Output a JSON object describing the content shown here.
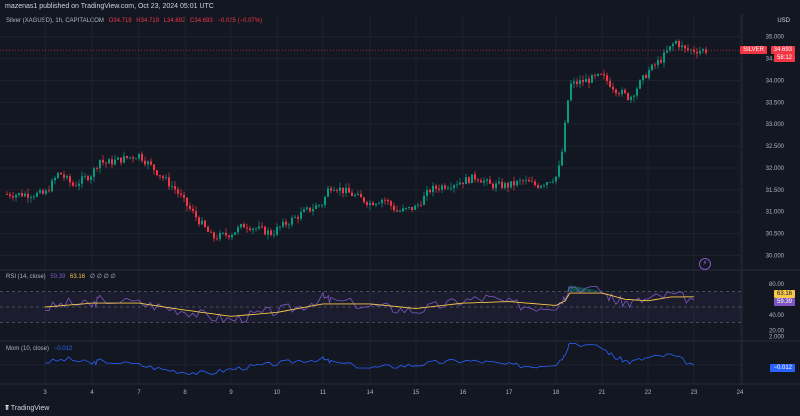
{
  "header": {
    "published": "mazenas1 published on TradingView.com, Oct 23, 2024 05:01 UTC"
  },
  "main_pane": {
    "symbol": "Silver (XAGUSD), 1h, CAPITALCOM",
    "open": "O34.719",
    "high": "H34.719",
    "low": "L34.692",
    "close": "C34.693",
    "change": "−0.025 (−0.07%)",
    "currency": "USD",
    "last_label": "SILVER",
    "last_price": "34.693",
    "countdown": "58:12"
  },
  "rsi_pane": {
    "title": "RSI (14, close)",
    "rsi_value": "59.39",
    "ma_value": "63.16",
    "extra": "∅ ∅ ∅ ∅"
  },
  "mom_pane": {
    "title": "Mom (10, close)",
    "value": "−0.012"
  },
  "footer": {
    "brand": "TradingView"
  },
  "colors": {
    "up": "#089981",
    "down": "#f23645",
    "rsi": "#7e57c2",
    "rsi_ma": "#f7c948",
    "mom": "#2962ff",
    "bg": "#131722"
  },
  "chart_data": {
    "type": "candlestick",
    "interval": "1h",
    "x_ticks": [
      "3",
      "4",
      "7",
      "8",
      "9",
      "10",
      "11",
      "14",
      "15",
      "16",
      "17",
      "18",
      "21",
      "22",
      "23",
      "24"
    ],
    "price_axis": {
      "ticks": [
        "35.000",
        "34.500",
        "34.000",
        "33.500",
        "33.000",
        "32.500",
        "32.000",
        "31.500",
        "31.000",
        "30.500",
        "30.000"
      ],
      "range": [
        29.85,
        35.2
      ]
    },
    "price_path": [
      [
        3,
        31.4
      ],
      [
        3.3,
        31.9
      ],
      [
        3.6,
        31.6
      ],
      [
        3.9,
        31.8
      ],
      [
        4.2,
        32.0
      ],
      [
        4.5,
        32.2
      ],
      [
        4.8,
        32.1
      ],
      [
        7,
        32.3
      ],
      [
        7.4,
        31.9
      ],
      [
        7.8,
        31.5
      ],
      [
        8,
        31.2
      ],
      [
        8.3,
        30.8
      ],
      [
        8.6,
        30.4
      ],
      [
        9,
        30.5
      ],
      [
        9.3,
        30.7
      ],
      [
        9.6,
        30.6
      ],
      [
        9.9,
        30.5
      ],
      [
        10,
        30.6
      ],
      [
        10.3,
        30.8
      ],
      [
        10.6,
        31.0
      ],
      [
        11,
        31.2
      ],
      [
        11.3,
        31.5
      ],
      [
        11.6,
        31.6
      ],
      [
        14,
        31.2
      ],
      [
        14.3,
        31.3
      ],
      [
        14.6,
        31.0
      ],
      [
        15,
        31.1
      ],
      [
        15.3,
        31.5
      ],
      [
        15.6,
        31.6
      ],
      [
        16,
        31.7
      ],
      [
        16.3,
        31.8
      ],
      [
        16.6,
        31.6
      ],
      [
        17,
        31.6
      ],
      [
        17.3,
        31.7
      ],
      [
        17.6,
        31.6
      ],
      [
        18,
        31.8
      ],
      [
        18.3,
        32.1
      ],
      [
        18.6,
        33.0
      ],
      [
        18.9,
        33.9
      ],
      [
        21,
        34.1
      ],
      [
        21.3,
        33.8
      ],
      [
        21.6,
        33.6
      ],
      [
        22,
        34.2
      ],
      [
        22.3,
        34.5
      ],
      [
        22.6,
        34.9
      ],
      [
        22.8,
        34.7
      ],
      [
        23,
        34.69
      ]
    ],
    "rsi_axis": {
      "ticks": [
        "80.00",
        "40.00",
        "20.00"
      ],
      "bands": [
        30,
        70
      ]
    },
    "rsi_path": [
      [
        3,
        48
      ],
      [
        3.5,
        55
      ],
      [
        4,
        52
      ],
      [
        4.5,
        60
      ],
      [
        7,
        55
      ],
      [
        7.5,
        50
      ],
      [
        8,
        45
      ],
      [
        8.5,
        38
      ],
      [
        9,
        33
      ],
      [
        9.5,
        40
      ],
      [
        10,
        45
      ],
      [
        10.5,
        50
      ],
      [
        11,
        62
      ],
      [
        11.5,
        58
      ],
      [
        14,
        52
      ],
      [
        14.5,
        48
      ],
      [
        15,
        45
      ],
      [
        15.5,
        52
      ],
      [
        16,
        58
      ],
      [
        16.5,
        62
      ],
      [
        17,
        55
      ],
      [
        17.5,
        50
      ],
      [
        18,
        52
      ],
      [
        18.5,
        62
      ],
      [
        18.9,
        78
      ],
      [
        21,
        70
      ],
      [
        21.3,
        58
      ],
      [
        21.6,
        55
      ],
      [
        22,
        60
      ],
      [
        22.5,
        66
      ],
      [
        23,
        59.39
      ]
    ],
    "rsi_ma_path": [
      [
        3,
        50
      ],
      [
        4,
        55
      ],
      [
        7,
        55
      ],
      [
        8,
        46
      ],
      [
        9,
        38
      ],
      [
        10,
        43
      ],
      [
        11,
        54
      ],
      [
        14,
        54
      ],
      [
        15,
        48
      ],
      [
        16,
        55
      ],
      [
        17,
        57
      ],
      [
        18,
        52
      ],
      [
        18.6,
        58
      ],
      [
        18.9,
        68
      ],
      [
        21,
        68
      ],
      [
        21.5,
        60
      ],
      [
        22,
        58
      ],
      [
        22.5,
        63
      ],
      [
        23,
        63.16
      ]
    ],
    "mom_axis": {
      "ticks": [
        "2.000"
      ]
    },
    "mom_path": [
      [
        3,
        0.2
      ],
      [
        3.5,
        0.4
      ],
      [
        4,
        0.1
      ],
      [
        4.5,
        0.3
      ],
      [
        7,
        0.0
      ],
      [
        7.5,
        -0.3
      ],
      [
        8,
        -0.5
      ],
      [
        8.5,
        -0.6
      ],
      [
        9,
        -0.3
      ],
      [
        9.5,
        -0.1
      ],
      [
        10,
        0.1
      ],
      [
        10.5,
        0.3
      ],
      [
        11,
        0.4
      ],
      [
        11.5,
        0.2
      ],
      [
        14,
        -0.2
      ],
      [
        14.5,
        -0.1
      ],
      [
        15,
        0.0
      ],
      [
        15.5,
        0.2
      ],
      [
        16,
        0.3
      ],
      [
        16.5,
        0.2
      ],
      [
        17,
        0.0
      ],
      [
        17.5,
        -0.1
      ],
      [
        18,
        0.1
      ],
      [
        18.5,
        0.6
      ],
      [
        18.9,
        1.6
      ],
      [
        21,
        1.2
      ],
      [
        21.3,
        0.5
      ],
      [
        21.6,
        0.2
      ],
      [
        22,
        0.5
      ],
      [
        22.5,
        0.7
      ],
      [
        23,
        -0.012
      ]
    ]
  }
}
